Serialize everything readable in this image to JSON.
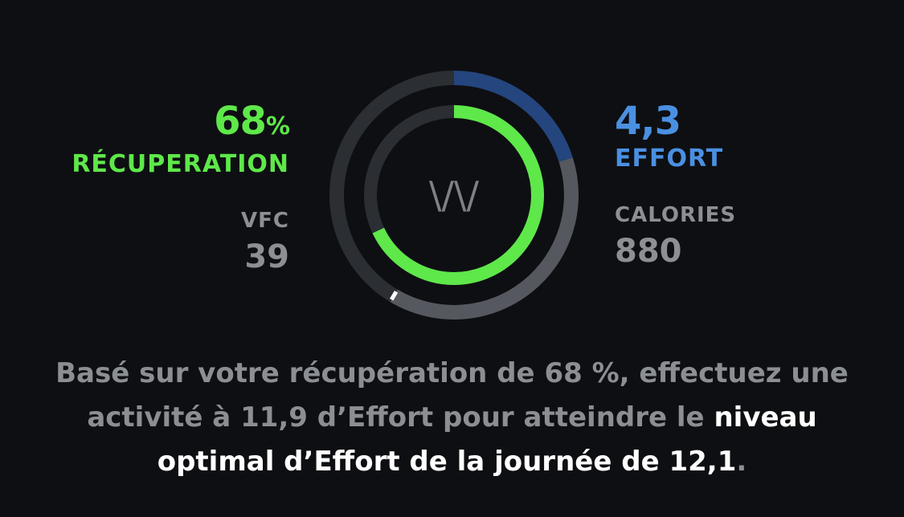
{
  "recovery": {
    "value": "68",
    "unit": "%",
    "label": "RÉCUPERATION",
    "percent": 68,
    "color": "#5ee84a"
  },
  "effort": {
    "value": "4,3",
    "label": "EFFORT",
    "color": "#4a90e2"
  },
  "hrv": {
    "label": "VFC",
    "value": "39"
  },
  "calories": {
    "label": "CALORIES",
    "value": "880"
  },
  "logo": {
    "text": "\\/\\/",
    "icon": "whoop-logo-icon"
  },
  "message": {
    "part1": "Basé sur votre récupération de 68 %, effectuez une activité à 11,9 d’Effort pour atteindre le ",
    "highlight": "niveau optimal d’Effort de la journée de 12,1",
    "end": "."
  }
}
